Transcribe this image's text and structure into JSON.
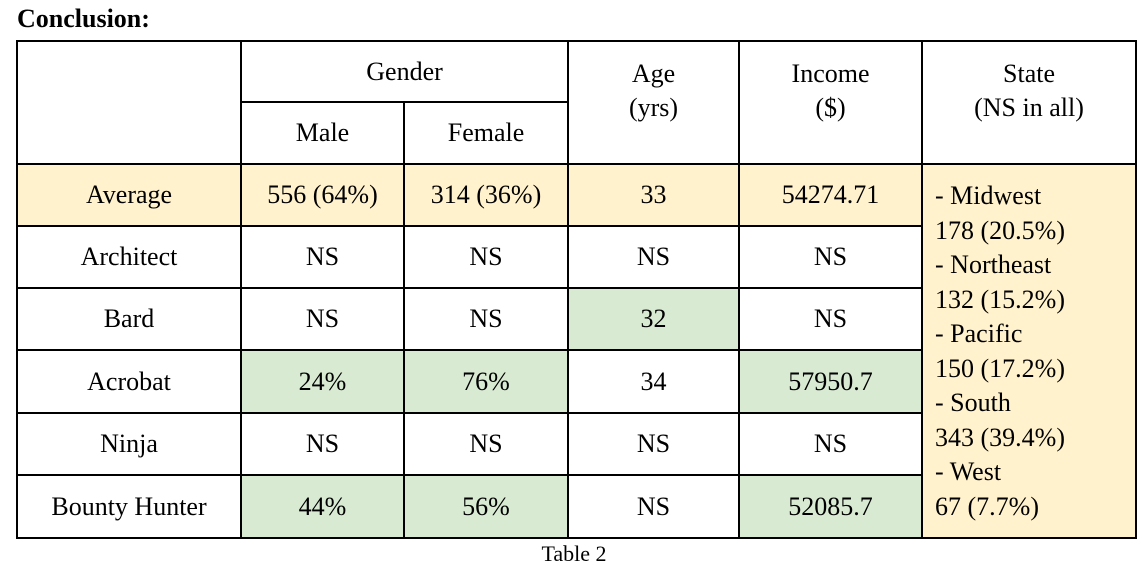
{
  "heading": "Conclusion:",
  "colors": {
    "highlight_yellow": "#fff2cc",
    "highlight_green": "#d9ead3",
    "border": "#000000"
  },
  "table": {
    "header": {
      "corner": "",
      "gender": "Gender",
      "male": "Male",
      "female": "Female",
      "age_line1": "Age",
      "age_line2": "(yrs)",
      "income_line1": "Income",
      "income_line2": "($)",
      "state_line1": "State",
      "state_line2": "(NS in all)"
    },
    "rows": [
      {
        "label": "Average",
        "male": "556 (64%)",
        "female": "314 (36%)",
        "age": "33",
        "income": "54274.71"
      },
      {
        "label": "Architect",
        "male": "NS",
        "female": "NS",
        "age": "NS",
        "income": "NS"
      },
      {
        "label": "Bard",
        "male": "NS",
        "female": "NS",
        "age": "32",
        "income": "NS"
      },
      {
        "label": "Acrobat",
        "male": "24%",
        "female": "76%",
        "age": "34",
        "income": "57950.7"
      },
      {
        "label": "Ninja",
        "male": "NS",
        "female": "NS",
        "age": "NS",
        "income": "NS"
      },
      {
        "label": "Bounty Hunter",
        "male": "44%",
        "female": "56%",
        "age": "NS",
        "income": "52085.7"
      }
    ],
    "state_lines": [
      "- Midwest",
      "178 (20.5%)",
      "- Northeast",
      "132 (15.2%)",
      "- Pacific",
      "150 (17.2%)",
      "- South",
      "343 (39.4%)",
      "- West",
      "67 (7.7%)"
    ]
  },
  "caption": "Table 2"
}
